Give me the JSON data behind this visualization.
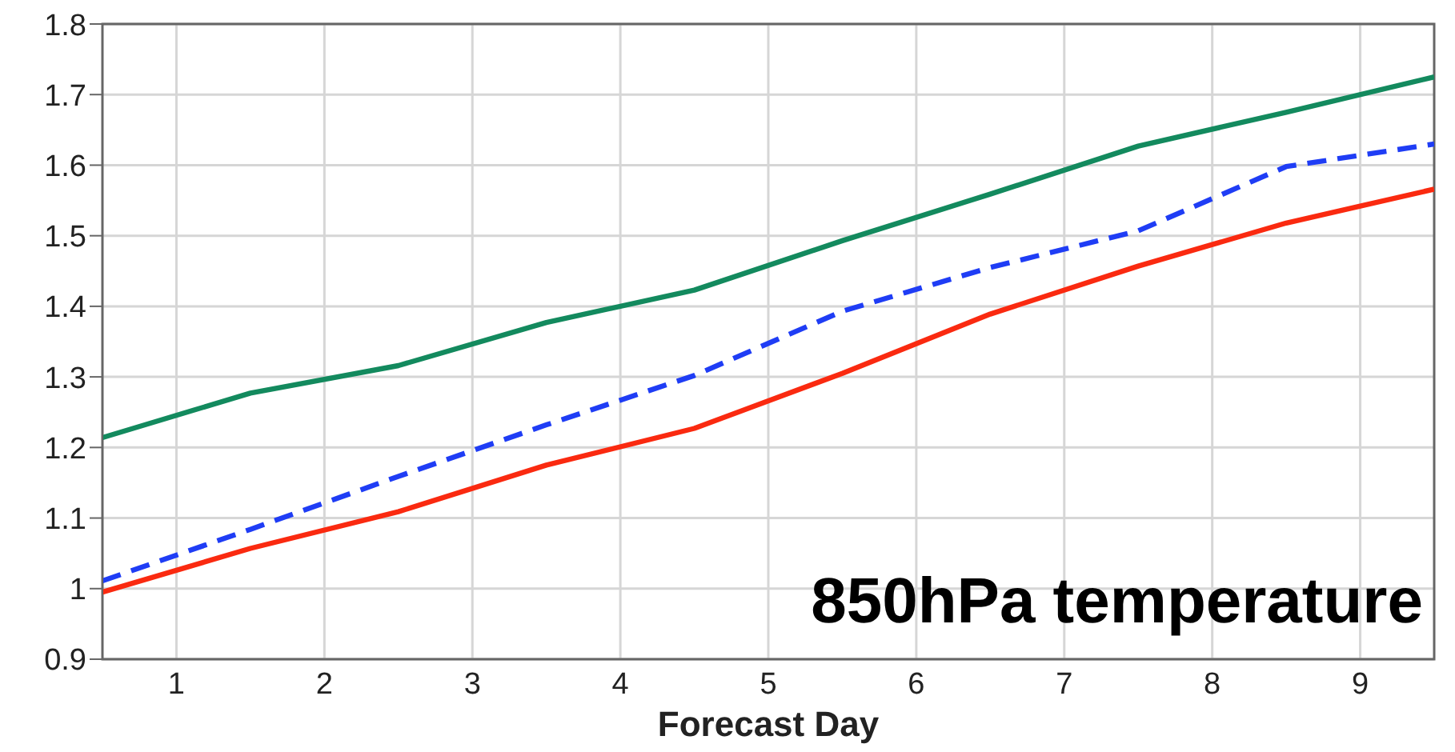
{
  "chart_data": {
    "type": "line",
    "xlabel": "Forecast Day",
    "annotations": [
      "850hPa temperature"
    ],
    "x": [
      0.5,
      1.5,
      2.5,
      3.5,
      4.5,
      5.5,
      6.5,
      7.5,
      8.5,
      9.5
    ],
    "series": [
      {
        "color": "#138a5e",
        "line_style": "solid",
        "values": [
          1.214,
          1.277,
          1.316,
          1.377,
          1.423,
          1.493,
          1.559,
          1.627,
          1.675,
          1.725
        ]
      },
      {
        "color": "#1f3df5",
        "line_style": "dashed",
        "values": [
          1.011,
          1.084,
          1.159,
          1.232,
          1.302,
          1.393,
          1.455,
          1.507,
          1.598,
          1.63
        ]
      },
      {
        "color": "#fa2a10",
        "line_style": "solid",
        "values": [
          0.995,
          1.057,
          1.109,
          1.175,
          1.227,
          1.305,
          1.389,
          1.457,
          1.518,
          1.566
        ]
      }
    ],
    "xlim": [
      0.5,
      9.5
    ],
    "xticks": [
      1,
      2,
      3,
      4,
      5,
      6,
      7,
      8,
      9
    ],
    "ylim": [
      0.9,
      1.8
    ],
    "yticks": [
      0.9,
      1,
      1.1,
      1.2,
      1.3,
      1.4,
      1.5,
      1.6,
      1.7,
      1.8
    ],
    "grid": true,
    "marker": "none",
    "legend": false
  }
}
